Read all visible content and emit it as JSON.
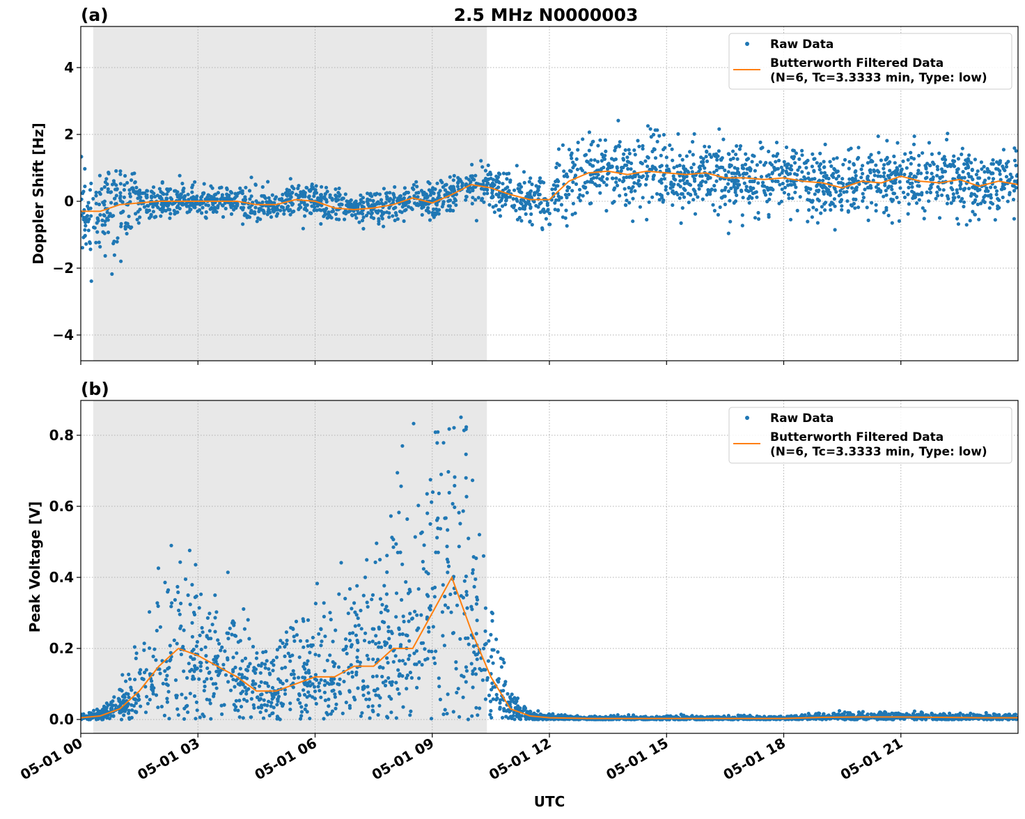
{
  "chart_data": [
    {
      "panel_label": "(a)",
      "title": "2.5 MHz N0000003",
      "type": "scatter+line",
      "ylabel": "Doppler Shift [Hz]",
      "xlabel": "",
      "xlim_hours": [
        0,
        24
      ],
      "ylim": [
        -4.77,
        5.23
      ],
      "yticks": [
        -4,
        -2,
        0,
        2,
        4
      ],
      "ytick_labels": [
        "−4",
        "−2",
        "0",
        "2",
        "4"
      ],
      "grid": true,
      "legend_placement": "top-right",
      "shaded_interval_hours": [
        0.32,
        10.4
      ],
      "shade_color": "#e8e8e8",
      "series": [
        {
          "name": "Raw Data",
          "kind": "scatter",
          "color": "#1f77b4",
          "spread_by_hour": {
            "0": 0.6,
            "1.5": 0.25,
            "10": 0.35,
            "12": 0.5
          }
        },
        {
          "name": "Butterworth Filtered Data\n(N=6, Tc=3.3333 min, Type: low)",
          "kind": "line",
          "color": "#ff7f0e",
          "x_hours": [
            0,
            0.5,
            1,
            1.5,
            2,
            2.5,
            3,
            3.5,
            4,
            4.5,
            5,
            5.5,
            6,
            6.5,
            7,
            7.5,
            8,
            8.5,
            9,
            9.5,
            10,
            10.5,
            11,
            11.5,
            12,
            12.5,
            13,
            13.5,
            14,
            14.5,
            15,
            15.5,
            16,
            16.5,
            17,
            17.5,
            18,
            18.5,
            19,
            19.5,
            20,
            20.5,
            21,
            21.5,
            22,
            22.5,
            23,
            23.5,
            24
          ],
          "values": [
            -0.3,
            -0.3,
            -0.1,
            -0.05,
            0,
            0,
            0,
            0,
            0,
            -0.1,
            -0.1,
            0.05,
            0,
            -0.2,
            -0.25,
            -0.2,
            -0.1,
            0.1,
            -0.05,
            0.2,
            0.5,
            0.4,
            0.2,
            0.05,
            0.05,
            0.6,
            0.85,
            0.9,
            0.8,
            0.9,
            0.85,
            0.8,
            0.85,
            0.7,
            0.7,
            0.65,
            0.7,
            0.6,
            0.55,
            0.4,
            0.6,
            0.55,
            0.75,
            0.6,
            0.55,
            0.65,
            0.45,
            0.6,
            0.5
          ]
        }
      ],
      "legend": [
        "Raw Data",
        "Butterworth Filtered Data",
        "(N=6, Tc=3.3333 min, Type: low)"
      ]
    },
    {
      "panel_label": "(b)",
      "type": "scatter+line",
      "ylabel": "Peak Voltage [V]",
      "xlabel": "UTC",
      "xlim_hours": [
        0,
        24
      ],
      "xticks_hours": [
        0,
        3,
        6,
        9,
        12,
        15,
        18,
        21
      ],
      "xtick_labels": [
        "05-01 00",
        "05-01 03",
        "05-01 06",
        "05-01 09",
        "05-01 12",
        "05-01 15",
        "05-01 18",
        "05-01 21"
      ],
      "ylim": [
        -0.039,
        0.898
      ],
      "yticks": [
        0.0,
        0.2,
        0.4,
        0.6,
        0.8
      ],
      "ytick_labels": [
        "0.0",
        "0.2",
        "0.4",
        "0.6",
        "0.8"
      ],
      "grid": true,
      "legend_placement": "top-right",
      "shaded_interval_hours": [
        0.32,
        10.4
      ],
      "shade_color": "#e8e8e8",
      "series": [
        {
          "name": "Raw Data",
          "kind": "scatter",
          "color": "#1f77b4"
        },
        {
          "name": "Butterworth Filtered Data\n(N=6, Tc=3.3333 min, Type: low)",
          "kind": "line",
          "color": "#ff7f0e",
          "x_hours": [
            0,
            0.5,
            1,
            1.5,
            2,
            2.5,
            3,
            3.5,
            4,
            4.5,
            5,
            5.5,
            6,
            6.5,
            7,
            7.5,
            8,
            8.5,
            9,
            9.5,
            10,
            10.5,
            11,
            11.5,
            12,
            13,
            15,
            18,
            19,
            20,
            21,
            22,
            23,
            24
          ],
          "values": [
            0.005,
            0.01,
            0.03,
            0.08,
            0.15,
            0.2,
            0.18,
            0.15,
            0.12,
            0.08,
            0.08,
            0.1,
            0.12,
            0.12,
            0.15,
            0.15,
            0.2,
            0.2,
            0.3,
            0.4,
            0.25,
            0.12,
            0.03,
            0.01,
            0.005,
            0.003,
            0.003,
            0.003,
            0.006,
            0.007,
            0.007,
            0.006,
            0.005,
            0.005
          ]
        }
      ],
      "legend": [
        "Raw Data",
        "Butterworth Filtered Data",
        "(N=6, Tc=3.3333 min, Type: low)"
      ]
    }
  ]
}
